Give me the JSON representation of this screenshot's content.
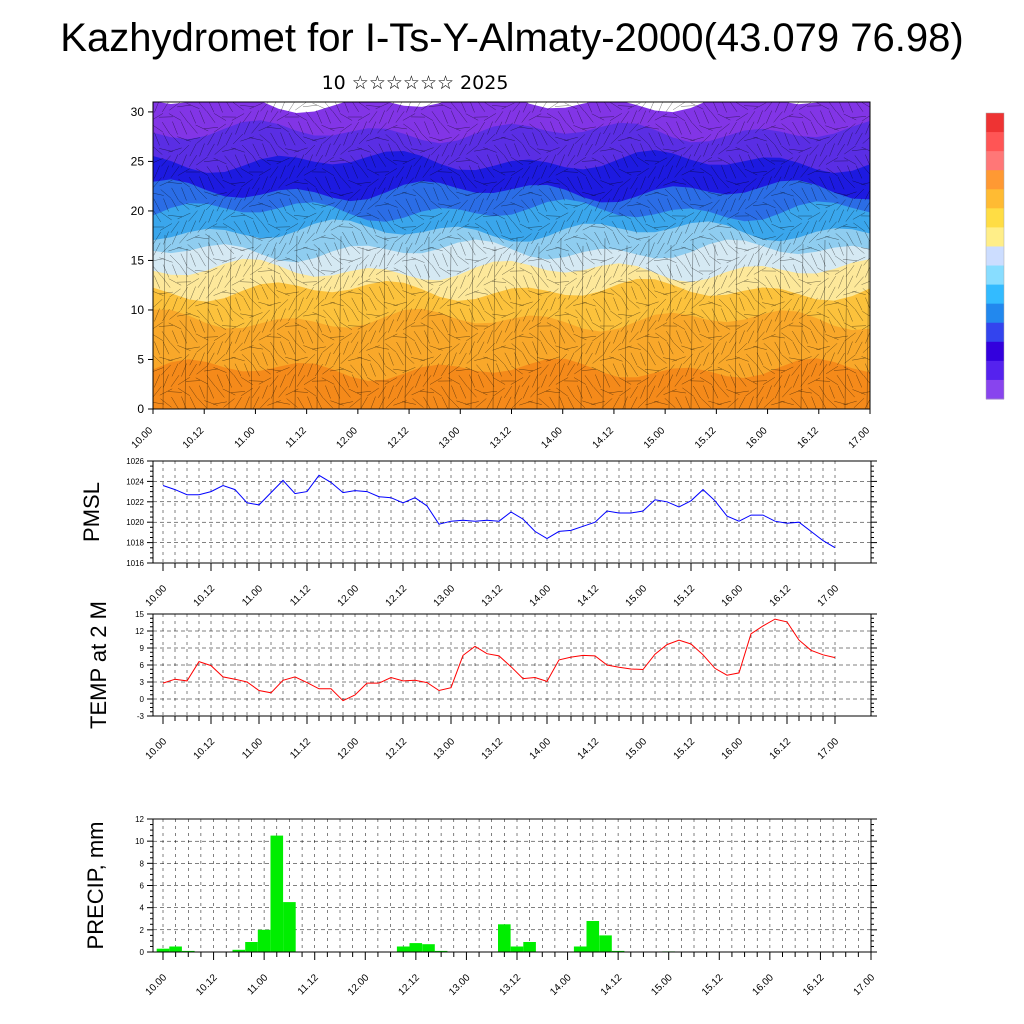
{
  "page": {
    "title": "Kazhydromet for I-Ts-Y-Almaty-2000(43.079 76.98)",
    "subtitle": "10 ☆☆☆☆☆☆ 2025"
  },
  "colors": {
    "pmsl_line": "#0000ff",
    "temp_line": "#ff0000",
    "precip_bar": "#00ee00",
    "grid": "#000000"
  },
  "chart_data": [
    {
      "type": "heatmap",
      "name": "cross-section",
      "x_tick_labels": [
        "10.00",
        "10.12",
        "11.00",
        "11.12",
        "12.00",
        "12.12",
        "13.00",
        "13.12",
        "14.00",
        "14.12",
        "15.00",
        "15.12",
        "16.00",
        "16.12",
        "17.00"
      ],
      "y_ticks": [
        0,
        5,
        10,
        15,
        20,
        25,
        30
      ],
      "ylim": [
        0,
        31
      ],
      "color_bands": [
        {
          "from": 0,
          "to": 4,
          "color": "#f58a1a"
        },
        {
          "from": 4,
          "to": 9,
          "color": "#f9a82a"
        },
        {
          "from": 9,
          "to": 12,
          "color": "#fcc23c"
        },
        {
          "from": 12,
          "to": 14,
          "color": "#fde89a"
        },
        {
          "from": 14,
          "to": 16,
          "color": "#d5e9f3"
        },
        {
          "from": 16,
          "to": 18,
          "color": "#8fcdf0"
        },
        {
          "from": 18,
          "to": 20,
          "color": "#3aa6ec"
        },
        {
          "from": 20,
          "to": 22,
          "color": "#2b6de6"
        },
        {
          "from": 22,
          "to": 25,
          "color": "#1d1ae0"
        },
        {
          "from": 25,
          "to": 28,
          "color": "#5a2ee4"
        },
        {
          "from": 28,
          "to": 31,
          "color": "#8235e6"
        }
      ],
      "colorbar": [
        "#e33",
        "#f55",
        "#f77",
        "#f93",
        "#fb3",
        "#fd4",
        "#fe8",
        "#cdf",
        "#8df",
        "#3bf",
        "#28e",
        "#34e",
        "#30d",
        "#52e",
        "#84e"
      ]
    },
    {
      "type": "line",
      "ylabel": "PMSL",
      "ylim": [
        1016,
        1026
      ],
      "y_ticks": [
        1016,
        1018,
        1020,
        1022,
        1024,
        1026
      ],
      "x_tick_labels": [
        "10.00",
        "10.12",
        "11.00",
        "11.12",
        "12.00",
        "12.12",
        "13.00",
        "13.12",
        "14.00",
        "14.12",
        "15.00",
        "15.12",
        "16.00",
        "16.12",
        "17.00"
      ],
      "series": [
        {
          "values": [
            1023.6,
            1023.2,
            1022.7,
            1022.7,
            1023.0,
            1023.6,
            1023.2,
            1021.9,
            1021.7,
            1022.9,
            1024.1,
            1022.8,
            1023.0,
            1024.6,
            1023.9,
            1022.9,
            1023.1,
            1023.0,
            1022.5,
            1022.4,
            1021.9,
            1022.4,
            1021.6,
            1019.8,
            1020.1,
            1020.2,
            1020.1,
            1020.2,
            1020.1,
            1021.0,
            1020.3,
            1019.1,
            1018.4,
            1019.1,
            1019.2,
            1019.6,
            1020.0,
            1021.1,
            1020.9,
            1020.9,
            1021.1,
            1022.2,
            1022.0,
            1021.5,
            1022.1,
            1023.2,
            1022.1,
            1020.6,
            1020.1,
            1020.7,
            1020.7,
            1020.1,
            1019.9,
            1020.0,
            1019.1,
            1018.2,
            1017.5
          ]
        }
      ]
    },
    {
      "type": "line",
      "ylabel": "TEMP at 2 M",
      "ylim": [
        -3,
        15
      ],
      "y_ticks": [
        -3,
        0,
        3,
        6,
        9,
        12,
        15
      ],
      "x_tick_labels": [
        "10.00",
        "10.12",
        "11.00",
        "11.12",
        "12.00",
        "12.12",
        "13.00",
        "13.12",
        "14.00",
        "14.12",
        "15.00",
        "15.12",
        "16.00",
        "16.12",
        "17.00"
      ],
      "series": [
        {
          "values": [
            2.8,
            3.5,
            3.2,
            6.6,
            5.9,
            3.9,
            3.5,
            3.0,
            1.5,
            1.1,
            3.3,
            3.9,
            2.9,
            1.8,
            1.8,
            -0.3,
            0.7,
            2.8,
            2.8,
            3.8,
            3.2,
            3.3,
            2.9,
            1.5,
            2.0,
            7.7,
            9.3,
            8.0,
            7.6,
            5.7,
            3.6,
            3.8,
            3.1,
            6.9,
            7.4,
            7.7,
            7.6,
            6.0,
            5.6,
            5.3,
            5.2,
            7.9,
            9.6,
            10.4,
            9.7,
            7.8,
            5.4,
            4.2,
            4.6,
            11.5,
            12.9,
            14.1,
            13.6,
            10.4,
            8.6,
            7.8,
            7.3
          ]
        }
      ]
    },
    {
      "type": "bar",
      "ylabel": "PRECIP, mm",
      "ylim": [
        0,
        12
      ],
      "y_ticks": [
        0,
        2,
        4,
        6,
        8,
        10,
        12
      ],
      "x_tick_labels": [
        "10.00",
        "10.12",
        "11.00",
        "11.12",
        "12.00",
        "12.12",
        "13.00",
        "13.12",
        "14.00",
        "14.12",
        "15.00",
        "15.12",
        "16.00",
        "16.12",
        "17.00"
      ],
      "values": [
        0.3,
        0.5,
        0.1,
        0,
        0,
        0,
        0.2,
        0.9,
        2.0,
        10.5,
        4.5,
        0,
        0,
        0,
        0,
        0,
        0,
        0,
        0,
        0.5,
        0.8,
        0.7,
        0.1,
        0,
        0,
        0,
        0,
        2.5,
        0.5,
        0.9,
        0,
        0,
        0,
        0.5,
        2.8,
        1.5,
        0.1,
        0,
        0,
        0,
        0.05,
        0,
        0,
        0,
        0,
        0,
        0,
        0,
        0,
        0,
        0,
        0,
        0,
        0,
        0,
        0,
        0
      ]
    }
  ]
}
